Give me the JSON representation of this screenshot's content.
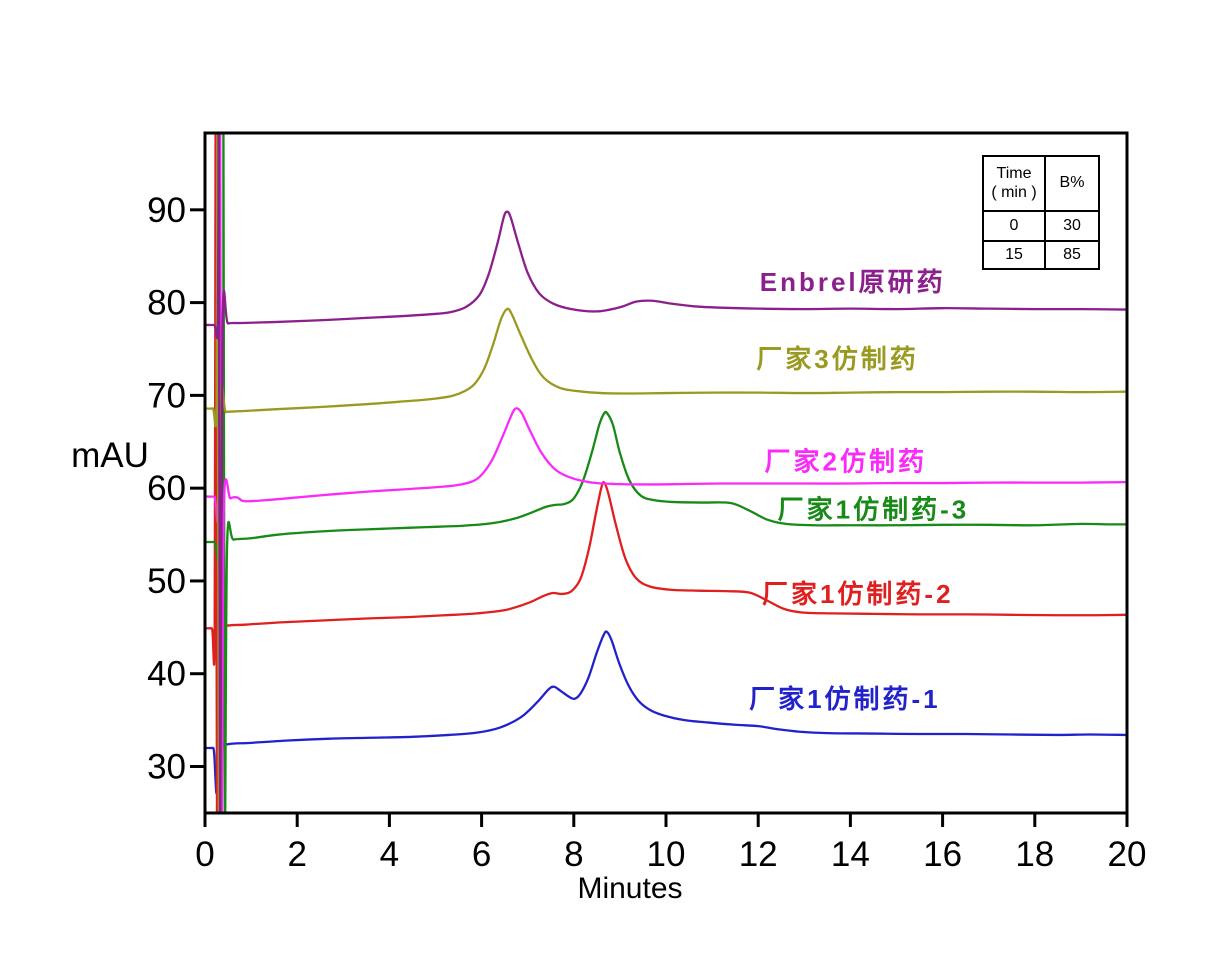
{
  "gradient_table": {
    "col1_header_line1": "Time",
    "col1_header_line2": "( min )",
    "col2_header": "B%",
    "rows": [
      [
        "0",
        "30"
      ],
      [
        "15",
        "85"
      ]
    ]
  },
  "chart_data": {
    "type": "line",
    "title": "",
    "xlabel": "Minutes",
    "ylabel": "mAU",
    "x_axis": {
      "range": [
        0,
        20
      ],
      "major_ticks": [
        0,
        2,
        4,
        6,
        8,
        10,
        12,
        14,
        16,
        18,
        20
      ]
    },
    "y_axis": {
      "range": [
        25,
        98
      ],
      "major_ticks": [
        30,
        40,
        50,
        60,
        70,
        80,
        90
      ]
    },
    "grid": false,
    "legend_position": "inline-right-of-each-trace",
    "axis_color": "#000000",
    "series": [
      {
        "id": "mfr1-biosimilar-1",
        "name": "厂家1仿制药-1",
        "color": "#2222CC",
        "label_pos": {
          "t": 13.88,
          "v": 37.3
        },
        "points": [
          [
            0,
            32.0
          ],
          [
            0.18,
            32.0
          ],
          [
            0.27,
            32.1
          ],
          [
            0.29,
            99
          ],
          [
            0.32,
            24
          ],
          [
            0.37,
            31.8
          ],
          [
            0.5,
            32.4
          ],
          [
            1.0,
            32.55
          ],
          [
            1.8,
            32.8
          ],
          [
            2.7,
            33.0
          ],
          [
            3.6,
            33.1
          ],
          [
            4.5,
            33.2
          ],
          [
            5.3,
            33.4
          ],
          [
            5.9,
            33.65
          ],
          [
            6.4,
            34.2
          ],
          [
            6.85,
            35.3
          ],
          [
            7.2,
            36.9
          ],
          [
            7.45,
            38.3
          ],
          [
            7.57,
            38.6
          ],
          [
            7.7,
            38.2
          ],
          [
            7.9,
            37.5
          ],
          [
            8.02,
            37.3
          ],
          [
            8.15,
            37.9
          ],
          [
            8.32,
            39.6
          ],
          [
            8.5,
            42.3
          ],
          [
            8.65,
            44.2
          ],
          [
            8.72,
            44.5
          ],
          [
            8.82,
            43.6
          ],
          [
            8.98,
            41.2
          ],
          [
            9.18,
            38.8
          ],
          [
            9.4,
            37.1
          ],
          [
            9.65,
            36.1
          ],
          [
            9.95,
            35.5
          ],
          [
            10.4,
            35.0
          ],
          [
            10.9,
            34.75
          ],
          [
            11.5,
            34.5
          ],
          [
            12.0,
            34.35
          ],
          [
            12.45,
            34.0
          ],
          [
            12.9,
            33.75
          ],
          [
            13.5,
            33.6
          ],
          [
            14.5,
            33.55
          ],
          [
            15.5,
            33.5
          ],
          [
            16.5,
            33.5
          ],
          [
            17.5,
            33.45
          ],
          [
            18.5,
            33.4
          ],
          [
            19.2,
            33.45
          ],
          [
            20,
            33.4
          ]
        ]
      },
      {
        "id": "mfr1-biosimilar-2",
        "name": "厂家1仿制药-2",
        "color": "#E01F1F",
        "label_pos": {
          "t": 14.16,
          "v": 48.6
        },
        "points": [
          [
            0,
            44.9
          ],
          [
            0.15,
            44.9
          ],
          [
            0.21,
            45.0
          ],
          [
            0.23,
            99
          ],
          [
            0.26,
            24
          ],
          [
            0.31,
            44.5
          ],
          [
            0.45,
            45.15
          ],
          [
            0.9,
            45.3
          ],
          [
            1.7,
            45.55
          ],
          [
            2.6,
            45.75
          ],
          [
            3.5,
            45.95
          ],
          [
            4.4,
            46.1
          ],
          [
            5.2,
            46.3
          ],
          [
            5.9,
            46.5
          ],
          [
            6.5,
            46.85
          ],
          [
            7.0,
            47.6
          ],
          [
            7.35,
            48.4
          ],
          [
            7.55,
            48.7
          ],
          [
            7.75,
            48.6
          ],
          [
            7.95,
            48.9
          ],
          [
            8.15,
            50.3
          ],
          [
            8.33,
            53.5
          ],
          [
            8.48,
            57.3
          ],
          [
            8.6,
            60.1
          ],
          [
            8.66,
            60.6
          ],
          [
            8.75,
            59.4
          ],
          [
            8.92,
            55.9
          ],
          [
            9.12,
            52.4
          ],
          [
            9.35,
            50.3
          ],
          [
            9.65,
            49.4
          ],
          [
            10.1,
            49.05
          ],
          [
            10.7,
            48.95
          ],
          [
            11.3,
            48.9
          ],
          [
            11.8,
            48.75
          ],
          [
            12.15,
            48.0
          ],
          [
            12.55,
            47.0
          ],
          [
            12.95,
            46.6
          ],
          [
            13.6,
            46.5
          ],
          [
            14.5,
            46.45
          ],
          [
            15.5,
            46.4
          ],
          [
            16.5,
            46.4
          ],
          [
            17.5,
            46.35
          ],
          [
            18.5,
            46.3
          ],
          [
            19.3,
            46.3
          ],
          [
            20,
            46.35
          ]
        ]
      },
      {
        "id": "mfr1-biosimilar-3",
        "name": "厂家1仿制药-3",
        "color": "#178A17",
        "label_pos": {
          "t": 14.5,
          "v": 57.7
        },
        "points": [
          [
            0,
            54.2
          ],
          [
            0.2,
            54.2
          ],
          [
            0.38,
            54.3
          ],
          [
            0.4,
            99
          ],
          [
            0.43,
            24
          ],
          [
            0.48,
            54.0
          ],
          [
            0.62,
            54.45
          ],
          [
            1.0,
            54.6
          ],
          [
            1.6,
            55.0
          ],
          [
            2.4,
            55.3
          ],
          [
            3.2,
            55.5
          ],
          [
            4.0,
            55.65
          ],
          [
            4.8,
            55.8
          ],
          [
            5.6,
            55.95
          ],
          [
            6.2,
            56.2
          ],
          [
            6.7,
            56.7
          ],
          [
            7.1,
            57.4
          ],
          [
            7.4,
            58.0
          ],
          [
            7.6,
            58.2
          ],
          [
            7.8,
            58.3
          ],
          [
            8.0,
            58.9
          ],
          [
            8.2,
            60.8
          ],
          [
            8.4,
            64.0
          ],
          [
            8.55,
            66.8
          ],
          [
            8.65,
            68.0
          ],
          [
            8.72,
            68.1
          ],
          [
            8.85,
            66.8
          ],
          [
            9.0,
            63.8
          ],
          [
            9.2,
            60.9
          ],
          [
            9.45,
            59.2
          ],
          [
            9.75,
            58.7
          ],
          [
            10.2,
            58.5
          ],
          [
            10.8,
            58.45
          ],
          [
            11.4,
            58.4
          ],
          [
            11.8,
            57.6
          ],
          [
            12.2,
            56.6
          ],
          [
            12.6,
            56.15
          ],
          [
            13.2,
            56.0
          ],
          [
            14.0,
            56.0
          ],
          [
            15.0,
            56.0
          ],
          [
            16.0,
            56.05
          ],
          [
            17.0,
            56.05
          ],
          [
            18.0,
            56.0
          ],
          [
            19.0,
            56.15
          ],
          [
            19.6,
            56.1
          ],
          [
            20,
            56.1
          ]
        ]
      },
      {
        "id": "mfr2-biosimilar",
        "name": "厂家2仿制药",
        "color": "#FA2BFA",
        "label_pos": {
          "t": 13.9,
          "v": 62.9
        },
        "points": [
          [
            0,
            59.1
          ],
          [
            0.2,
            59.1
          ],
          [
            0.3,
            59.3
          ],
          [
            0.33,
            99
          ],
          [
            0.36,
            24
          ],
          [
            0.41,
            58.2
          ],
          [
            0.55,
            58.9
          ],
          [
            0.7,
            59.0
          ],
          [
            0.85,
            58.6
          ],
          [
            1.3,
            58.7
          ],
          [
            2.0,
            59.0
          ],
          [
            2.8,
            59.35
          ],
          [
            3.6,
            59.65
          ],
          [
            4.4,
            59.9
          ],
          [
            5.0,
            60.1
          ],
          [
            5.5,
            60.35
          ],
          [
            5.9,
            61.0
          ],
          [
            6.2,
            62.8
          ],
          [
            6.45,
            65.5
          ],
          [
            6.65,
            67.9
          ],
          [
            6.75,
            68.6
          ],
          [
            6.87,
            68.1
          ],
          [
            7.05,
            66.2
          ],
          [
            7.3,
            63.8
          ],
          [
            7.6,
            62.0
          ],
          [
            7.95,
            61.1
          ],
          [
            8.4,
            60.6
          ],
          [
            8.9,
            60.45
          ],
          [
            9.6,
            60.4
          ],
          [
            10.4,
            60.45
          ],
          [
            11.2,
            60.5
          ],
          [
            12.0,
            60.5
          ],
          [
            13.0,
            60.5
          ],
          [
            14.0,
            60.5
          ],
          [
            15.0,
            60.55
          ],
          [
            16.0,
            60.55
          ],
          [
            17.0,
            60.6
          ],
          [
            18.0,
            60.6
          ],
          [
            19.0,
            60.6
          ],
          [
            20,
            60.65
          ]
        ]
      },
      {
        "id": "mfr3-biosimilar",
        "name": "厂家3仿制药",
        "color": "#9A9A20",
        "label_pos": {
          "t": 13.72,
          "v": 73.9
        },
        "points": [
          [
            0,
            68.6
          ],
          [
            0.17,
            68.6
          ],
          [
            0.25,
            69.0
          ],
          [
            0.27,
            99
          ],
          [
            0.3,
            24
          ],
          [
            0.34,
            67.8
          ],
          [
            0.46,
            68.2
          ],
          [
            0.8,
            68.3
          ],
          [
            1.5,
            68.5
          ],
          [
            2.5,
            68.75
          ],
          [
            3.5,
            69.05
          ],
          [
            4.3,
            69.35
          ],
          [
            4.9,
            69.6
          ],
          [
            5.4,
            70.0
          ],
          [
            5.8,
            71.0
          ],
          [
            6.05,
            72.8
          ],
          [
            6.25,
            75.5
          ],
          [
            6.42,
            78.2
          ],
          [
            6.55,
            79.3
          ],
          [
            6.65,
            78.8
          ],
          [
            6.85,
            76.5
          ],
          [
            7.1,
            73.8
          ],
          [
            7.35,
            71.9
          ],
          [
            7.7,
            70.8
          ],
          [
            8.1,
            70.45
          ],
          [
            8.6,
            70.25
          ],
          [
            9.2,
            70.2
          ],
          [
            10,
            70.25
          ],
          [
            11,
            70.3
          ],
          [
            12,
            70.3
          ],
          [
            13,
            70.25
          ],
          [
            14,
            70.3
          ],
          [
            15,
            70.35
          ],
          [
            16,
            70.35
          ],
          [
            17,
            70.4
          ],
          [
            18,
            70.4
          ],
          [
            19,
            70.35
          ],
          [
            20,
            70.4
          ]
        ]
      },
      {
        "id": "enbrel-originator",
        "name": "Enbrel原研药",
        "color": "#8B1F8B",
        "label_pos": {
          "t": 14.05,
          "v": 82.2
        },
        "points": [
          [
            0,
            77.6
          ],
          [
            0.2,
            77.6
          ],
          [
            0.28,
            77.8
          ],
          [
            0.3,
            99
          ],
          [
            0.33,
            24
          ],
          [
            0.38,
            77.2
          ],
          [
            0.5,
            77.75
          ],
          [
            0.8,
            77.8
          ],
          [
            1.5,
            77.9
          ],
          [
            2.5,
            78.1
          ],
          [
            3.5,
            78.35
          ],
          [
            4.3,
            78.55
          ],
          [
            4.9,
            78.75
          ],
          [
            5.3,
            78.95
          ],
          [
            5.65,
            79.5
          ],
          [
            5.95,
            80.8
          ],
          [
            6.15,
            83.0
          ],
          [
            6.35,
            86.5
          ],
          [
            6.48,
            89.2
          ],
          [
            6.55,
            89.8
          ],
          [
            6.63,
            89.2
          ],
          [
            6.8,
            86.3
          ],
          [
            7.0,
            83.2
          ],
          [
            7.25,
            81.0
          ],
          [
            7.55,
            79.9
          ],
          [
            7.95,
            79.3
          ],
          [
            8.5,
            79.05
          ],
          [
            9.0,
            79.5
          ],
          [
            9.35,
            80.1
          ],
          [
            9.7,
            80.2
          ],
          [
            10.1,
            79.9
          ],
          [
            10.6,
            79.6
          ],
          [
            11.2,
            79.45
          ],
          [
            12.0,
            79.35
          ],
          [
            13.0,
            79.3
          ],
          [
            14.0,
            79.35
          ],
          [
            15.0,
            79.3
          ],
          [
            16.0,
            79.4
          ],
          [
            17.0,
            79.35
          ],
          [
            18.0,
            79.3
          ],
          [
            19.0,
            79.3
          ],
          [
            20,
            79.25
          ]
        ]
      }
    ]
  }
}
